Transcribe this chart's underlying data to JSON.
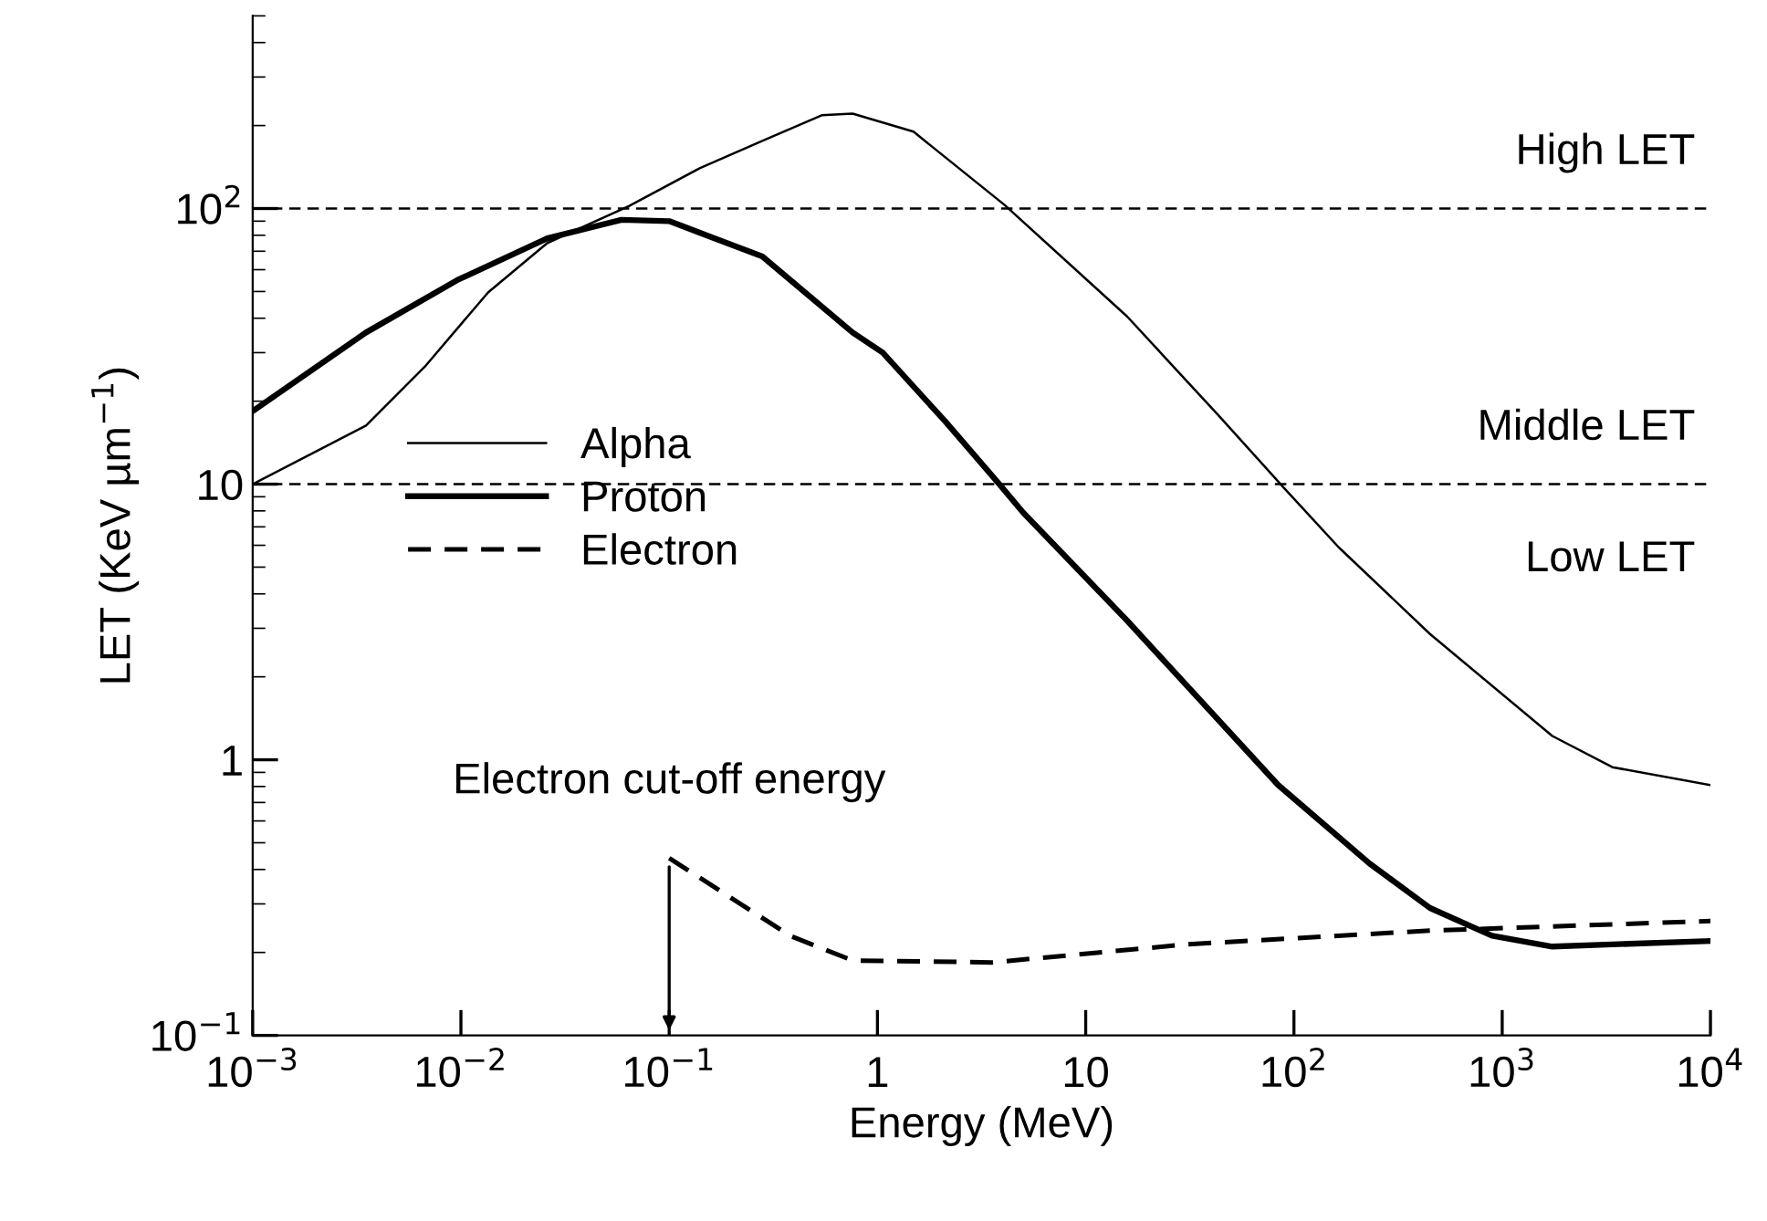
{
  "chart_data": {
    "type": "line",
    "xlabel": "Energy (MeV)",
    "ylabel": "LET (KeV µm$^{−1}$)",
    "log": "xy",
    "xlim": [
      0.001,
      10000
    ],
    "ylim": [
      0.1,
      500
    ],
    "xticks": [
      {
        "value": 0.001,
        "label": "10$^{−3}$"
      },
      {
        "value": 0.01,
        "label": "10$^{−2}$"
      },
      {
        "value": 0.1,
        "label": "10$^{−1}$"
      },
      1,
      10,
      {
        "value": 100,
        "label": "10$^{2}$"
      },
      {
        "value": 1000,
        "label": "10$^{3}$"
      },
      {
        "value": 10000,
        "label": "10$^{4}$"
      }
    ],
    "yticks": [
      {
        "value": 0.1,
        "label": "10$^{−1}$"
      },
      1,
      10,
      {
        "value": 100,
        "label": "10$^{2}$"
      }
    ],
    "grid": false,
    "legend": "center left",
    "marker": "none",
    "series": [
      {
        "name": "Alpha",
        "color": "#000000",
        "line_style": "solid",
        "x": [
          0.001,
          0.0035,
          0.0068,
          0.0135,
          0.026,
          0.064,
          0.14,
          0.28,
          0.54,
          0.76,
          1.49,
          4.08,
          15.8,
          43,
          89.5,
          164,
          450,
          1740,
          3380,
          10000
        ],
        "values": [
          10,
          16.3,
          27,
          49.6,
          75,
          102,
          140,
          176,
          218,
          221,
          190,
          103,
          40.6,
          17.9,
          9.7,
          5.9,
          2.86,
          1.22,
          0.94,
          0.81
        ]
      },
      {
        "name": "Proton",
        "color": "#000000",
        "line_style": "solid",
        "x": [
          0.001,
          0.0035,
          0.0096,
          0.026,
          0.059,
          0.1,
          0.28,
          0.76,
          1.06,
          2.1,
          3.85,
          5.0,
          15.8,
          84,
          231,
          450,
          893,
          1740,
          3380,
          10000
        ],
        "values": [
          18.4,
          35.5,
          55,
          78,
          91,
          90,
          67,
          35.5,
          30,
          17,
          10,
          7.9,
          3.2,
          0.81,
          0.42,
          0.29,
          0.23,
          0.21,
          0.214,
          0.22
        ]
      },
      {
        "name": "Electron",
        "color": "#000000",
        "line_style": "dashed",
        "x": [
          0.1,
          0.38,
          0.76,
          3.55,
          30.7,
          450,
          10000
        ],
        "values": [
          0.44,
          0.23,
          0.187,
          0.184,
          0.214,
          0.24,
          0.26
        ]
      }
    ],
    "ref_lines": [
      {
        "axis": "y",
        "value": 100,
        "label": "High LET",
        "line_style": "dashed",
        "color": "#000000"
      },
      {
        "axis": "y",
        "value": 10,
        "label": "Middle LET",
        "line_style": "dashed",
        "color": "#000000"
      }
    ],
    "annotations": [
      {
        "text": "Low LET",
        "x": 10000,
        "y": 10
      },
      "Electron cut-off energy"
    ]
  }
}
